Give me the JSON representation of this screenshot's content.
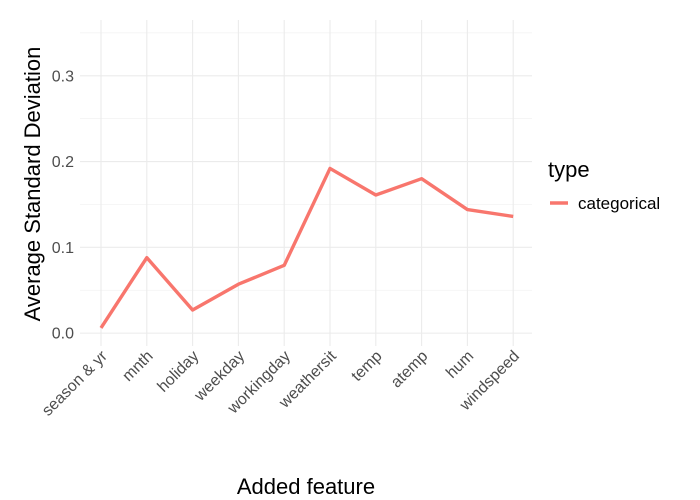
{
  "chart_data": {
    "type": "line",
    "xlabel": "Added feature",
    "ylabel": "Average Standard Deviation",
    "categories": [
      "season & yr",
      "mnth",
      "holiday",
      "weekday",
      "workingday",
      "weathersit",
      "temp",
      "atemp",
      "hum",
      "windspeed"
    ],
    "series": [
      {
        "name": "categorical",
        "color": "#F8766D",
        "values": [
          0.006,
          0.088,
          0.027,
          0.057,
          0.079,
          0.192,
          0.161,
          0.18,
          0.144,
          0.136
        ]
      }
    ],
    "ylim": [
      -0.015,
      0.365
    ],
    "yticks": [
      0.0,
      0.1,
      0.2,
      0.3
    ],
    "ytick_labels": [
      "0.0",
      "0.1",
      "0.2",
      "0.3"
    ],
    "grid": true,
    "legend": {
      "title": "type",
      "position": "right"
    }
  }
}
